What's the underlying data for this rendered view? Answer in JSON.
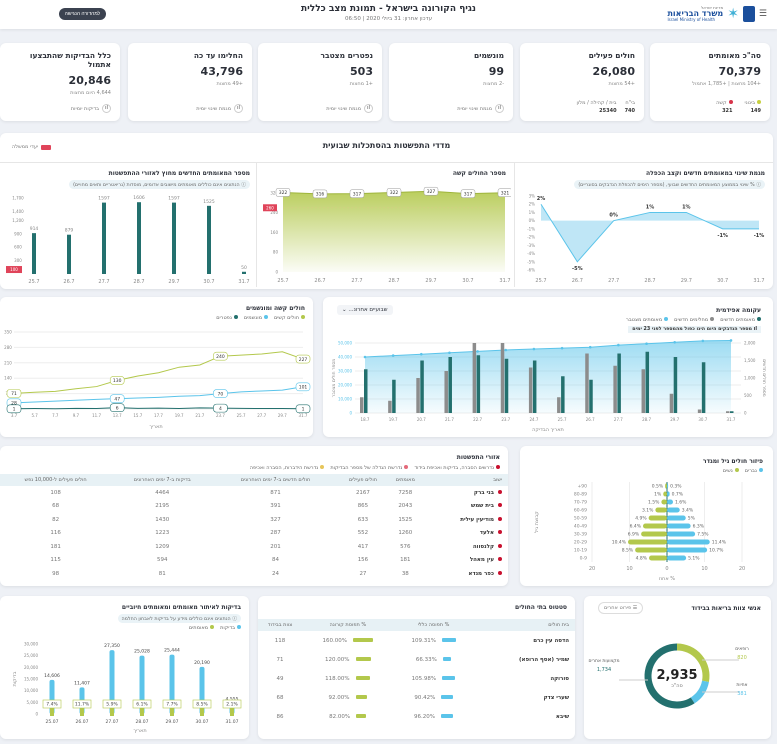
{
  "header": {
    "title": "נגיף הקורונה בישראל - תמונת מצב כללית",
    "subtitle": "עדכון אחרון: 31 ביולי 2020 | 06:50",
    "accessible_button": "למהדורה הנגישה",
    "logo_state": "מדינת ישראל",
    "logo_ministry": "משרד הבריאות",
    "logo_en": "Israel Ministry of Health",
    "menu_icon": "hamburger-icon"
  },
  "kpis": [
    {
      "title": "סה\"כ מאומתים",
      "value": "70,379",
      "delta": "+104 מחצות | +1,785 אתמול",
      "legend": [
        {
          "label": "בינוני",
          "value": "149",
          "color": "#c7d040"
        },
        {
          "label": "קשה",
          "value": "321",
          "color": "#d8334a"
        }
      ]
    },
    {
      "title": "חולים פעילים",
      "value": "26,080",
      "delta": "+54 מחצות",
      "legend": [
        {
          "label": "בי\"ח",
          "value": "740"
        },
        {
          "label": "בית / קהילה / מלון",
          "value": "25340"
        }
      ]
    },
    {
      "title": "מונשמים",
      "value": "99",
      "delta": "-2 מחצות",
      "link": "מגמת שינוי יומית"
    },
    {
      "title": "נפטרים מצטבר",
      "value": "503",
      "delta": "+1 מחצות",
      "link": "מגמת שינוי יומית"
    },
    {
      "title": "החלימו עד כה",
      "value": "43,796",
      "delta": "+49 מחצות",
      "link": "מגמת שינוי יומית"
    },
    {
      "title": "כלל הבדיקות שהתבצעו אתמול",
      "value": "20,846",
      "delta": "4,644 היום מחצות",
      "link": "בדיקות יומיות"
    }
  ],
  "weekly": {
    "title": "מדדי התפשטות בהסתכלות שבועית",
    "legend": "יעדי ממשלה",
    "target_color": "#e0445a"
  },
  "chart_data": [
    {
      "id": "change",
      "type": "area",
      "title": "מגמת שינוי במאומתים חדשים וקצב הכפלה",
      "note": "% שינוי בממוצע המאומתים החדשים שבועי, (מספר הימים להכפלת הנדבקים בסוגריים)",
      "categories": [
        "25.7",
        "26.7",
        "27.7",
        "28.7",
        "29.7",
        "30.7",
        "31.7"
      ],
      "values": [
        2,
        -5,
        0,
        1,
        1,
        -1,
        -1
      ],
      "labels": [
        "2%",
        "-5%",
        "0%",
        "1%",
        "1%",
        "-1%",
        "-1%"
      ],
      "ylim": [
        -6,
        3
      ],
      "color": "#5bc4ea"
    },
    {
      "id": "critical",
      "type": "area",
      "title": "מספר החולים קשה",
      "categories": [
        "25.7",
        "26.7",
        "27.7",
        "28.7",
        "29.7",
        "30.7",
        "31.7"
      ],
      "values": [
        322,
        316,
        317,
        322,
        327,
        317,
        321
      ],
      "yticks": [
        0,
        80,
        160,
        240,
        320
      ],
      "target": "260",
      "ylim": [
        0,
        340
      ],
      "color": "#b3c84c"
    },
    {
      "id": "focus",
      "type": "bar",
      "title": "מספר המאומתים החדשים מחוץ לאזורי ההתפשטות",
      "note": "הנתונים אינם כוללים מאומתים מישובים אדומים, מוסדות (גריאטריים ותאים מחויים)",
      "categories": [
        "25.7",
        "26.7",
        "27.7",
        "28.7",
        "29.7",
        "30.7",
        "31.7"
      ],
      "values": [
        914,
        879,
        1597,
        1606,
        1597,
        1525,
        50
      ],
      "yticks": [
        300,
        600,
        900,
        1200,
        1400,
        1700
      ],
      "target": "100",
      "ylim": [
        0,
        1700
      ],
      "color": "#23706e"
    },
    {
      "id": "severe",
      "type": "line",
      "title": "חולים קשה ומונשמים",
      "xlabel": "תאריך",
      "categories": [
        "3.7",
        "5.7",
        "7.7",
        "9.7",
        "11.7",
        "13.7",
        "15.7",
        "17.7",
        "19.7",
        "21.7",
        "23.7",
        "25.7",
        "27.7",
        "29.7",
        "31.7"
      ],
      "yticks": [
        0,
        70,
        140,
        210,
        280,
        350
      ],
      "ylim": [
        0,
        350
      ],
      "series": [
        {
          "name": "חולים קשים",
          "color": "#b3c84c",
          "values": [
            71,
            76,
            80,
            92,
            102,
            130,
            150,
            165,
            190,
            200,
            240,
            245,
            250,
            260,
            227
          ]
        },
        {
          "name": "מונשמים",
          "color": "#5bc4ea",
          "values": [
            28,
            32,
            36,
            40,
            44,
            47,
            50,
            53,
            58,
            61,
            70,
            78,
            82,
            86,
            101
          ]
        },
        {
          "name": "נפטרים",
          "color": "#23706e",
          "values": [
            1,
            2,
            1,
            3,
            2,
            6,
            3,
            4,
            2,
            5,
            4,
            3,
            2,
            2,
            1
          ]
        }
      ],
      "marked_index": [
        0,
        5,
        10,
        14
      ]
    },
    {
      "id": "epi",
      "type": "bar",
      "title": "עקומה אפידמית",
      "range": "שבועיים אחרונ...",
      "note": "מספר הנדבקים היום הינו כפול מהמספר לפני 23 ימים",
      "xlabel": "תאריך הבדיקה",
      "ylabel_left": "מספר חולים מצטבר",
      "ylabel_right": "מספר חולים חדשים",
      "categories": [
        "18.7",
        "19.7",
        "20.7",
        "21.7",
        "22.7",
        "23.7",
        "24.7",
        "25.7",
        "26.7",
        "27.7",
        "28.7",
        "29.7",
        "30.7",
        "31.7"
      ],
      "yticks_left": [
        "0",
        "10,000",
        "20,000",
        "30,000",
        "40,000",
        "50,000"
      ],
      "yticks_right": [
        "0",
        "500",
        "1,000",
        "1,500",
        "2,000"
      ],
      "series": [
        {
          "name": "מאומתים חדשים",
          "color": "#23706e",
          "values": [
            1250,
            950,
            1500,
            1600,
            1650,
            1550,
            1500,
            1050,
            950,
            1700,
            1750,
            1600,
            1450,
            50
          ]
        },
        {
          "name": "מחלימים חדשים",
          "color": "#8c8c8c",
          "values": [
            450,
            350,
            1000,
            1200,
            2000,
            2000,
            1300,
            450,
            1700,
            1350,
            1250,
            550,
            100,
            50
          ]
        },
        {
          "name": "מאומתים מצטבר",
          "color": "#5bc4ea",
          "values": [
            40000,
            41000,
            42000,
            43000,
            44000,
            45000,
            45700,
            46300,
            47000,
            48500,
            49500,
            50500,
            51500,
            51800
          ]
        }
      ]
    },
    {
      "id": "pyramid",
      "type": "bar",
      "title": "פיזור חולים גיל ומגדר",
      "xlabel": "אחוז %",
      "ylabel": "קבוצת גיל",
      "categories": [
        "0-9",
        "10-19",
        "20-29",
        "30-39",
        "40-49",
        "50-59",
        "60-69",
        "70-79",
        "80-89",
        "+90"
      ],
      "xticks": [
        "20",
        "10",
        "0",
        "10",
        "20"
      ],
      "series": [
        {
          "name": "נשים",
          "color": "#b3c84c",
          "values": [
            4.8,
            8.5,
            10.4,
            6.9,
            6.4,
            4.9,
            3.1,
            1.5,
            1,
            0.5
          ]
        },
        {
          "name": "גברים",
          "color": "#5bc4ea",
          "values": [
            5.1,
            10.7,
            11.4,
            7.5,
            6.3,
            5,
            3.4,
            1.6,
            0.7,
            0.3
          ]
        }
      ]
    },
    {
      "id": "tests",
      "type": "bar",
      "title": "בדיקות לאיתור מאומתים ומאומתים חיוביים",
      "note": "הנתונים אינם כוללים מידע על בדיקות לאבחון החלמה",
      "xlabel": "תאריך",
      "ylabel": "בדיקות",
      "categories": [
        "25.07",
        "26.07",
        "27.07",
        "28.07",
        "29.07",
        "30.07",
        "31.07"
      ],
      "yticks": [
        "0",
        "5,000",
        "10,000",
        "15,000",
        "20,000",
        "25,000",
        "30,000"
      ],
      "ylim": [
        0,
        30000
      ],
      "series": [
        {
          "name": "בדיקות",
          "color": "#5bc4ea",
          "values": [
            14606,
            11407,
            27350,
            25028,
            25444,
            20190,
            4555
          ],
          "labels": [
            "14,606",
            "11,407",
            "27,350",
            "25,028",
            "25,444",
            "20,190",
            "4,555"
          ]
        },
        {
          "name": "מאומתים",
          "color": "#b3c84c",
          "percent": [
            "7.4%",
            "11.7%",
            "5.9%",
            "6.1%",
            "7.7%",
            "8.5%",
            "2.1%"
          ]
        }
      ]
    }
  ],
  "areas": {
    "title": "אזורי התפשטות",
    "legend": [
      {
        "label": "נדרשים הסברה, בדיקות ואכיפת בידוד",
        "color": "#c8102e"
      },
      {
        "label": "נדרשת הגדלה של מספר הבדיקות",
        "color": "#e46a7a"
      },
      {
        "label": "נדרשת הידברות, הסברה ואכיפה",
        "color": "#e6c55a"
      }
    ],
    "columns": [
      "ישוב",
      "מאומתים",
      "חולים פעילים",
      "חולים חדשים ב-7 ימים האחרונים",
      "בדיקות ב-7 ימים האחרונים",
      "חולים פעילים ל-10,000 נפש"
    ],
    "rows": [
      [
        "בני ברק",
        "7258",
        "2167",
        "871",
        "4464",
        "108"
      ],
      [
        "בית שמש",
        "2043",
        "865",
        "391",
        "2195",
        "68"
      ],
      [
        "מודיעין עילית",
        "1525",
        "633",
        "327",
        "1430",
        "82"
      ],
      [
        "אלעד",
        "1260",
        "552",
        "287",
        "1223",
        "116"
      ],
      [
        "קלנסווה",
        "576",
        "417",
        "201",
        "1209",
        "181"
      ],
      [
        "עין מאהל",
        "181",
        "156",
        "84",
        "594",
        "115"
      ],
      [
        "כפר מנדא",
        "38",
        "27",
        "24",
        "81",
        "98"
      ]
    ]
  },
  "hospitals": {
    "title": "סטטוס בתי החולים",
    "columns": [
      "בית חולים",
      "% תפוסה כללי",
      "% תפוסת קורונה",
      "צוות בבידוד"
    ],
    "rows": [
      {
        "name": "הדסה עין כרם",
        "general": "109.31%",
        "general_pct": 109.31,
        "covid": "160.00%",
        "covid_pct": 160,
        "staff": "118"
      },
      {
        "name": "שמיר (אסף הרופא)",
        "general": "66.33%",
        "general_pct": 66.33,
        "covid": "120.00%",
        "covid_pct": 120,
        "staff": "71"
      },
      {
        "name": "סורוקה",
        "general": "105.98%",
        "general_pct": 105.98,
        "covid": "118.00%",
        "covid_pct": 118,
        "staff": "49"
      },
      {
        "name": "שערי צדק",
        "general": "90.42%",
        "general_pct": 90.42,
        "covid": "92.00%",
        "covid_pct": 92,
        "staff": "68"
      },
      {
        "name": "שיבא",
        "general": "96.20%",
        "general_pct": 96.2,
        "covid": "82.00%",
        "covid_pct": 82,
        "staff": "86"
      }
    ]
  },
  "staff": {
    "title": "אנשי צוות בריאות בבידוד",
    "button": "פירוט אחרים",
    "total": "2,935",
    "total_label": "סה\"כ",
    "segments": [
      {
        "label": "רופאים",
        "value": "820",
        "n": 820,
        "color": "#b3c84c"
      },
      {
        "label": "אחיות",
        "value": "381",
        "n": 381,
        "color": "#5bc4ea"
      },
      {
        "label": "מקצועות אחרים",
        "value": "1,734",
        "n": 1734,
        "color": "#23706e"
      }
    ]
  }
}
